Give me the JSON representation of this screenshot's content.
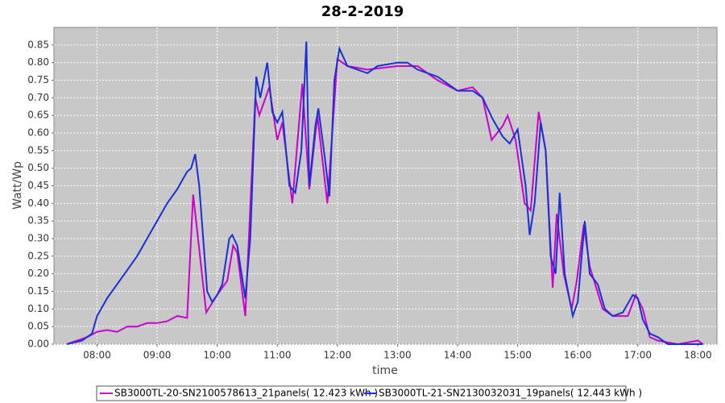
{
  "chart_data": {
    "type": "line",
    "title": "28-2-2019",
    "xlabel": "time",
    "ylabel": "Watt/Wp",
    "xlim": [
      "07:17",
      "18:19"
    ],
    "xticks": [
      "08:00",
      "09:00",
      "10:00",
      "11:00",
      "12:00",
      "13:00",
      "14:00",
      "15:00",
      "16:00",
      "17:00",
      "18:00"
    ],
    "ylim": [
      0,
      0.9
    ],
    "yticks": [
      {
        "value": 0,
        "label": "0.00"
      },
      0.05,
      {
        "value": 0.1,
        "label": "0.10"
      },
      0.15,
      {
        "value": 0.2,
        "label": "0.20"
      },
      0.25,
      {
        "value": 0.3,
        "label": "0.30"
      },
      0.35,
      {
        "value": 0.4,
        "label": "0.40"
      },
      0.45,
      {
        "value": 0.5,
        "label": "0.50"
      },
      0.55,
      {
        "value": 0.6,
        "label": "0.60"
      },
      0.65,
      {
        "value": 0.7,
        "label": "0.70"
      },
      0.75,
      {
        "value": 0.8,
        "label": "0.80"
      },
      0.85
    ],
    "grid": true,
    "series": [
      {
        "name": "SB3000TL-20-SN2100578613_21panels( 12.423 kWh )",
        "color": "#cc00cc",
        "x": [
          "07:30",
          "07:40",
          "07:50",
          "08:00",
          "08:10",
          "08:20",
          "08:30",
          "08:40",
          "08:50",
          "09:00",
          "09:10",
          "09:20",
          "09:30",
          "09:36",
          "09:49",
          "10:00",
          "10:10",
          "10:16",
          "10:20",
          "10:28",
          "10:38",
          "10:42",
          "10:52",
          "11:00",
          "11:05",
          "11:15",
          "11:25",
          "11:32",
          "11:40",
          "11:50",
          "12:00",
          "12:10",
          "12:30",
          "13:00",
          "13:20",
          "13:40",
          "14:00",
          "14:15",
          "14:25",
          "14:34",
          "14:45",
          "14:50",
          "14:58",
          "15:07",
          "15:13",
          "15:21",
          "15:28",
          "15:35",
          "15:39",
          "15:46",
          "15:54",
          "15:59",
          "16:06",
          "16:12",
          "16:25",
          "16:35",
          "16:50",
          "16:58",
          "17:05",
          "17:12",
          "17:20",
          "17:40",
          "18:00",
          "18:05"
        ],
        "values": [
          0.0,
          0.01,
          0.02,
          0.035,
          0.04,
          0.035,
          0.05,
          0.05,
          0.06,
          0.06,
          0.065,
          0.08,
          0.075,
          0.425,
          0.09,
          0.14,
          0.18,
          0.28,
          0.26,
          0.08,
          0.7,
          0.65,
          0.73,
          0.58,
          0.63,
          0.4,
          0.74,
          0.44,
          0.65,
          0.4,
          0.81,
          0.79,
          0.78,
          0.79,
          0.79,
          0.75,
          0.72,
          0.73,
          0.7,
          0.58,
          0.62,
          0.65,
          0.58,
          0.4,
          0.38,
          0.66,
          0.55,
          0.16,
          0.37,
          0.2,
          0.1,
          0.18,
          0.34,
          0.22,
          0.1,
          0.08,
          0.08,
          0.14,
          0.1,
          0.02,
          0.01,
          0.0,
          0.01,
          0.0
        ]
      },
      {
        "name": "SB3000TL-21-SN2130032031_19panels( 12.443 kWh )",
        "color": "#1a2fd4",
        "x": [
          "07:30",
          "07:45",
          "07:55",
          "08:00",
          "08:10",
          "08:20",
          "08:30",
          "08:40",
          "08:50",
          "09:00",
          "09:10",
          "09:20",
          "09:30",
          "09:34",
          "09:38",
          "09:42",
          "09:50",
          "09:55",
          "10:00",
          "10:05",
          "10:12",
          "10:15",
          "10:20",
          "10:28",
          "10:33",
          "10:39",
          "10:43",
          "10:50",
          "10:55",
          "11:00",
          "11:05",
          "11:12",
          "11:18",
          "11:24",
          "11:29",
          "11:32",
          "11:38",
          "11:41",
          "11:47",
          "11:52",
          "11:57",
          "12:02",
          "12:10",
          "12:30",
          "12:40",
          "13:00",
          "13:10",
          "13:20",
          "13:40",
          "14:00",
          "14:15",
          "14:25",
          "14:35",
          "14:45",
          "14:52",
          "15:00",
          "15:08",
          "15:12",
          "15:17",
          "15:23",
          "15:28",
          "15:33",
          "15:38",
          "15:42",
          "15:47",
          "15:55",
          "16:00",
          "16:07",
          "16:12",
          "16:20",
          "16:27",
          "16:35",
          "16:45",
          "16:55",
          "17:00",
          "17:05",
          "17:12",
          "17:20",
          "17:30",
          "18:00",
          "18:05"
        ],
        "values": [
          0.0,
          0.01,
          0.03,
          0.08,
          0.13,
          0.17,
          0.21,
          0.25,
          0.3,
          0.35,
          0.4,
          0.44,
          0.49,
          0.5,
          0.54,
          0.45,
          0.15,
          0.12,
          0.14,
          0.17,
          0.3,
          0.31,
          0.28,
          0.13,
          0.3,
          0.76,
          0.7,
          0.8,
          0.66,
          0.63,
          0.66,
          0.45,
          0.43,
          0.55,
          0.86,
          0.45,
          0.62,
          0.67,
          0.54,
          0.42,
          0.75,
          0.84,
          0.79,
          0.77,
          0.79,
          0.8,
          0.8,
          0.78,
          0.76,
          0.72,
          0.72,
          0.7,
          0.64,
          0.59,
          0.57,
          0.61,
          0.45,
          0.31,
          0.4,
          0.63,
          0.55,
          0.25,
          0.2,
          0.43,
          0.2,
          0.08,
          0.12,
          0.35,
          0.2,
          0.17,
          0.1,
          0.08,
          0.09,
          0.14,
          0.13,
          0.07,
          0.03,
          0.02,
          0.0,
          0.0,
          0.0
        ]
      }
    ]
  }
}
